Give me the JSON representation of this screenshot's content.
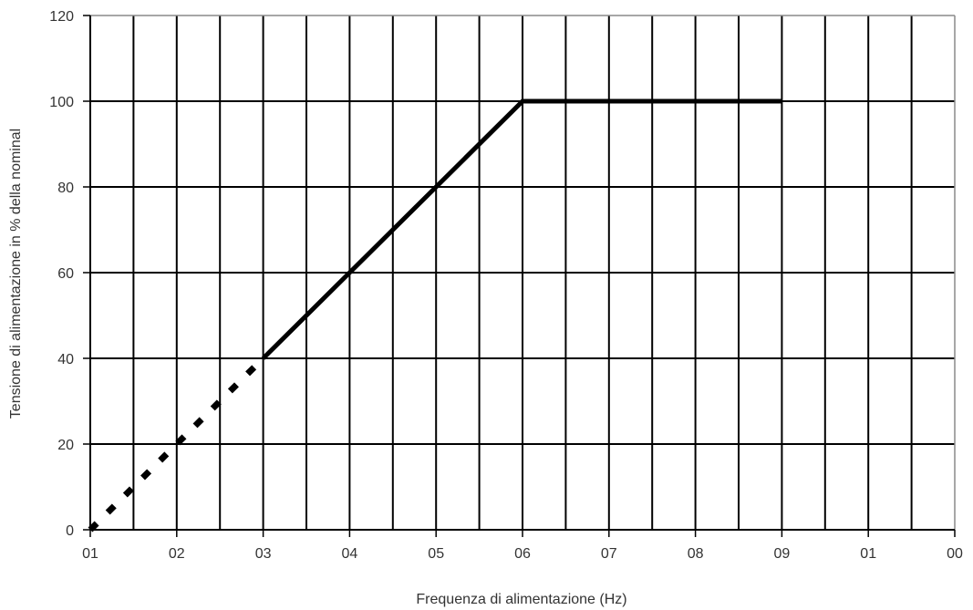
{
  "chart_data": {
    "type": "line",
    "title": "",
    "xlabel": "Frequenza di alimentazione (Hz)",
    "ylabel": "Tensione di alimentazione in % della nominal",
    "xlim": [
      0,
      100
    ],
    "ylim": [
      0,
      120
    ],
    "x_ticks": [
      {
        "value": 0,
        "label": "01"
      },
      {
        "value": 10,
        "label": "02"
      },
      {
        "value": 20,
        "label": "03"
      },
      {
        "value": 30,
        "label": "04"
      },
      {
        "value": 40,
        "label": "05"
      },
      {
        "value": 50,
        "label": "06"
      },
      {
        "value": 60,
        "label": "07"
      },
      {
        "value": 70,
        "label": "08"
      },
      {
        "value": 80,
        "label": "09"
      },
      {
        "value": 90,
        "label": "01"
      },
      {
        "value": 100,
        "label": "00"
      }
    ],
    "y_ticks": [
      0,
      20,
      40,
      60,
      80,
      100,
      120
    ],
    "x_grid_step": 5,
    "y_grid_step": 20,
    "grid": true,
    "series": [
      {
        "style": "dotted",
        "color": "#000000",
        "points": [
          [
            0,
            0
          ],
          [
            20,
            40
          ]
        ]
      },
      {
        "style": "solid",
        "color": "#000000",
        "points": [
          [
            20,
            40
          ],
          [
            50,
            100
          ],
          [
            80,
            100
          ]
        ]
      }
    ]
  }
}
